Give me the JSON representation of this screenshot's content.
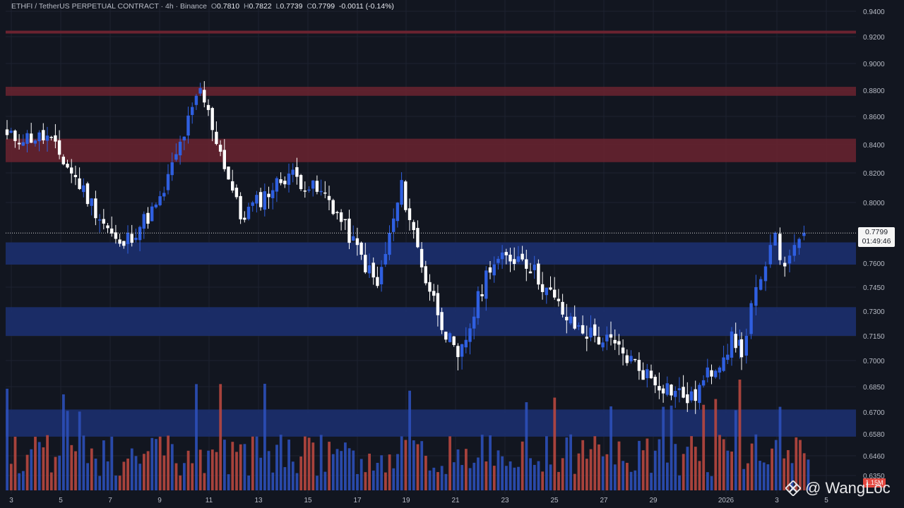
{
  "header": {
    "symbol": "ETHFI / TetherUS PERPETUAL CONTRACT · 4h · Binance",
    "o_label": "O",
    "o_val": "0.7810",
    "h_label": "H",
    "h_val": "0.7822",
    "l_label": "L",
    "l_val": "0.7739",
    "c_label": "C",
    "c_val": "0.7799",
    "change": "-0.0011 (-0.14%)"
  },
  "price_label": {
    "price": "0.7799",
    "countdown": "01:49:46"
  },
  "volume_label": "1.15M",
  "watermark": "@ WangLoc",
  "colors": {
    "background": "#121620",
    "up": "#2f5fe0",
    "down": "#ffffff",
    "resistance": "#6b2330",
    "support": "#1c2f6e",
    "vol_up": "#2c4fb8",
    "vol_down": "#b8473f"
  },
  "chart_data": {
    "type": "candlestick",
    "y_ticks": [
      "0.9400",
      "0.9200",
      "0.9000",
      "0.8800",
      "0.8600",
      "0.8400",
      "0.8200",
      "0.8000",
      "0.7600",
      "0.7450",
      "0.7300",
      "0.7150",
      "0.7000",
      "0.6850",
      "0.6700",
      "0.6580",
      "0.6460",
      "0.6350"
    ],
    "x_ticks": [
      "3",
      "5",
      "7",
      "9",
      "11",
      "13",
      "15",
      "17",
      "19",
      "21",
      "23",
      "25",
      "27",
      "29",
      "2026",
      "3",
      "5"
    ],
    "last_price": 0.7799,
    "resistance_lines": [
      0.9236
    ],
    "resistance_zones": [
      [
        0.8758,
        0.8826
      ],
      [
        0.8276,
        0.8442
      ]
    ],
    "support_zones": [
      [
        0.7591,
        0.7737
      ],
      [
        0.715,
        0.7325
      ],
      [
        0.6565,
        0.6715
      ]
    ],
    "grid": true
  }
}
